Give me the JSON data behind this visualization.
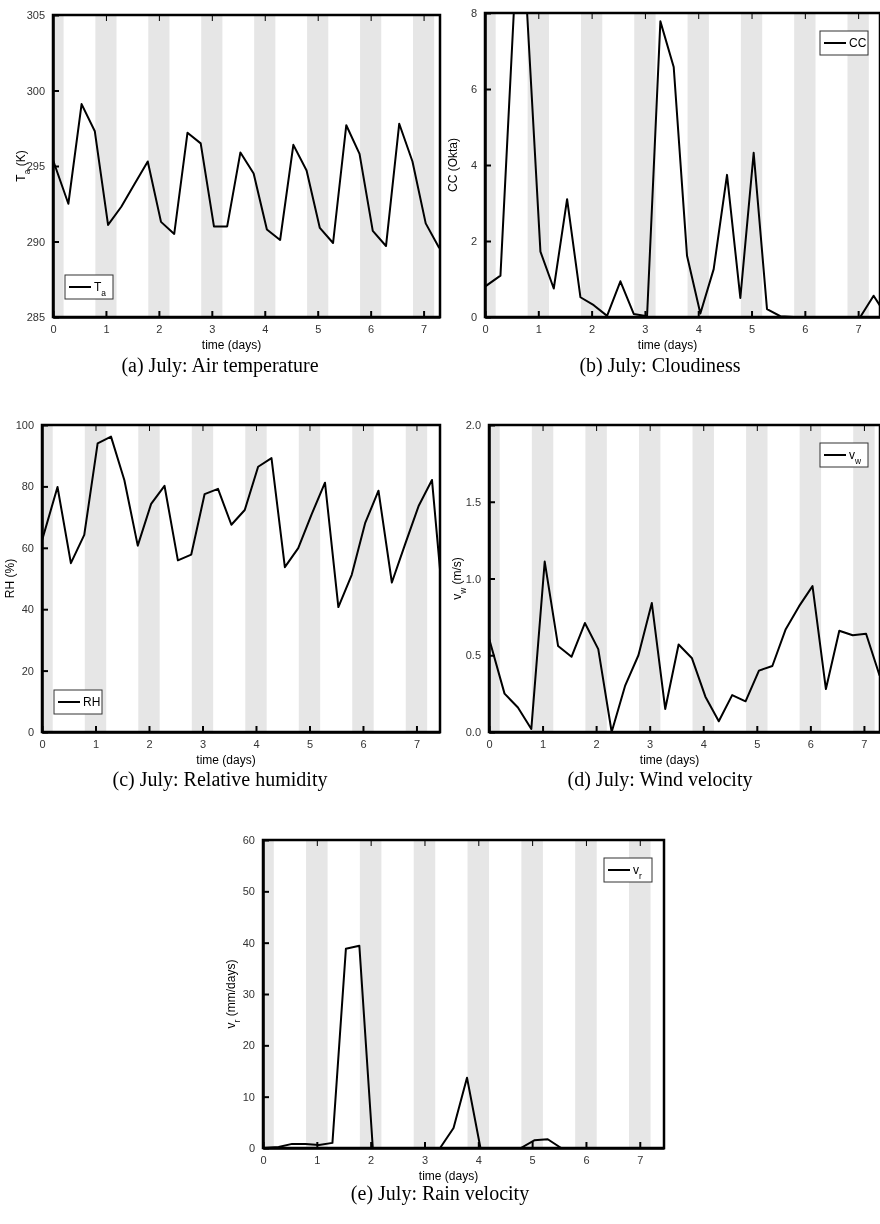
{
  "chart_data": [
    {
      "type": "line",
      "title": "(a) July: Air temperature",
      "xlabel": "time (days)",
      "ylabel": "T$_{a}$ (K)",
      "legend": "bottom left",
      "grid": false,
      "x": [
        0,
        0.29,
        0.54,
        0.79,
        1.04,
        1.29,
        1.54,
        1.79,
        2.04,
        2.29,
        2.54,
        2.79,
        3.04,
        3.29,
        3.54,
        3.79,
        4.04,
        4.29,
        4.54,
        4.79,
        5.04,
        5.29,
        5.54,
        5.79,
        6.04,
        6.29,
        6.54,
        6.79,
        7.04,
        7.29
      ],
      "series": [
        {
          "name": "T$_{a}$",
          "color": "#000000",
          "values": [
            295.4,
            292.5,
            299.1,
            297.3,
            291.1,
            292.3,
            293.8,
            295.3,
            291.3,
            290.5,
            297.2,
            296.5,
            291.0,
            291.0,
            295.9,
            294.5,
            290.8,
            290.1,
            296.4,
            294.7,
            290.9,
            289.9,
            297.7,
            295.8,
            290.7,
            289.7,
            297.8,
            295.3,
            291.2,
            289.6
          ]
        }
      ],
      "xlim": [
        0,
        7.31
      ],
      "xticks": [
        0,
        1,
        2,
        3,
        4,
        5,
        6,
        7
      ],
      "ylim": [
        285,
        305
      ],
      "yticks": [
        285,
        290,
        295,
        300,
        305
      ],
      "bands": [
        {
          "axis": "x",
          "from": 0,
          "to": 0.2,
          "color": "#e6e6e6"
        },
        {
          "axis": "x",
          "from": 0.8,
          "to": 1.2,
          "color": "#e6e6e6"
        },
        {
          "axis": "x",
          "from": 1.8,
          "to": 2.2,
          "color": "#e6e6e6"
        },
        {
          "axis": "x",
          "from": 2.8,
          "to": 3.2,
          "color": "#e6e6e6"
        },
        {
          "axis": "x",
          "from": 3.8,
          "to": 4.2,
          "color": "#e6e6e6"
        },
        {
          "axis": "x",
          "from": 4.8,
          "to": 5.2,
          "color": "#e6e6e6"
        },
        {
          "axis": "x",
          "from": 5.8,
          "to": 6.2,
          "color": "#e6e6e6"
        },
        {
          "axis": "x",
          "from": 6.8,
          "to": 7.2,
          "color": "#e6e6e6"
        }
      ]
    },
    {
      "type": "line",
      "title": "(b) July: Cloudiness",
      "xlabel": "time (days)",
      "ylabel": "CC (Okta)",
      "legend": "top right",
      "grid": false,
      "x": [
        0,
        0.29,
        0.54,
        0.79,
        1.04,
        1.29,
        1.54,
        1.79,
        2.04,
        2.29,
        2.54,
        2.79,
        3.04,
        3.29,
        3.54,
        3.79,
        4.04,
        4.29,
        4.54,
        4.79,
        5.04,
        5.29,
        5.54,
        5.79,
        6.04,
        6.29,
        6.54,
        6.79,
        7.04,
        7.29,
        7.41
      ],
      "series": [
        {
          "name": "CC",
          "color": "#000000",
          "values": [
            0.8,
            1.09,
            8,
            8,
            1.72,
            0.75,
            3.1,
            0.52,
            0.31,
            0.03,
            0.94,
            0.08,
            0.02,
            7.78,
            6.58,
            1.61,
            0.09,
            1.26,
            3.74,
            0.5,
            4.32,
            0.21,
            0.02,
            0,
            0,
            0,
            0,
            0,
            0,
            0.56,
            0.3
          ]
        }
      ],
      "xlim": [
        0,
        7.41
      ],
      "xticks": [
        0,
        1,
        2,
        3,
        4,
        5,
        6,
        7
      ],
      "ylim": [
        0,
        8
      ],
      "yticks": [
        0,
        2,
        4,
        6,
        8
      ],
      "bands": [
        {
          "axis": "x",
          "from": 0,
          "to": 0.2,
          "color": "#e6e6e6"
        },
        {
          "axis": "x",
          "from": 0.8,
          "to": 1.2,
          "color": "#e6e6e6"
        },
        {
          "axis": "x",
          "from": 1.8,
          "to": 2.2,
          "color": "#e6e6e6"
        },
        {
          "axis": "x",
          "from": 2.8,
          "to": 3.2,
          "color": "#e6e6e6"
        },
        {
          "axis": "x",
          "from": 3.8,
          "to": 4.2,
          "color": "#e6e6e6"
        },
        {
          "axis": "x",
          "from": 4.8,
          "to": 5.2,
          "color": "#e6e6e6"
        },
        {
          "axis": "x",
          "from": 5.8,
          "to": 6.2,
          "color": "#e6e6e6"
        },
        {
          "axis": "x",
          "from": 6.8,
          "to": 7.2,
          "color": "#e6e6e6"
        }
      ]
    },
    {
      "type": "line",
      "title": "(c) July: Relative humidity",
      "xlabel": "time (days)",
      "ylabel": "RH (%)",
      "legend": "bottom left",
      "grid": false,
      "x": [
        0,
        0.29,
        0.54,
        0.79,
        1.04,
        1.29,
        1.54,
        1.79,
        2.04,
        2.29,
        2.54,
        2.79,
        3.04,
        3.29,
        3.54,
        3.79,
        4.04,
        4.29,
        4.54,
        4.79,
        5.04,
        5.29,
        5.54,
        5.79,
        6.04,
        6.29,
        6.54,
        6.79,
        7.04,
        7.29,
        7.44
      ],
      "series": [
        {
          "name": "RH",
          "color": "#000000",
          "values": [
            62.4,
            79.8,
            55.0,
            64.2,
            94.0,
            96.2,
            82,
            60.7,
            74.3,
            80.2,
            55.9,
            57.8,
            77.5,
            79.2,
            67.5,
            72.3,
            86.4,
            89.2,
            53.7,
            59.9,
            70.9,
            81.2,
            40.7,
            51.2,
            68.0,
            78.6,
            48.7,
            61.3,
            73.6,
            82.1,
            53
          ]
        }
      ],
      "xlim": [
        0,
        7.44
      ],
      "xticks": [
        0,
        1,
        2,
        3,
        4,
        5,
        6,
        7
      ],
      "ylim": [
        0,
        100
      ],
      "yticks": [
        0,
        20,
        40,
        60,
        80,
        100
      ],
      "bands": [
        {
          "axis": "x",
          "from": 0,
          "to": 0.2,
          "color": "#e6e6e6"
        },
        {
          "axis": "x",
          "from": 0.8,
          "to": 1.2,
          "color": "#e6e6e6"
        },
        {
          "axis": "x",
          "from": 1.8,
          "to": 2.2,
          "color": "#e6e6e6"
        },
        {
          "axis": "x",
          "from": 2.8,
          "to": 3.2,
          "color": "#e6e6e6"
        },
        {
          "axis": "x",
          "from": 3.8,
          "to": 4.2,
          "color": "#e6e6e6"
        },
        {
          "axis": "x",
          "from": 4.8,
          "to": 5.2,
          "color": "#e6e6e6"
        },
        {
          "axis": "x",
          "from": 5.8,
          "to": 6.2,
          "color": "#e6e6e6"
        },
        {
          "axis": "x",
          "from": 6.8,
          "to": 7.2,
          "color": "#e6e6e6"
        }
      ]
    },
    {
      "type": "line",
      "title": "(d) July: Wind velocity",
      "xlabel": "time (days)",
      "ylabel": "v$_{w}$ (m/s)",
      "legend": "top right",
      "grid": false,
      "x": [
        0,
        0.29,
        0.54,
        0.79,
        1.04,
        1.29,
        1.54,
        1.79,
        2.04,
        2.29,
        2.54,
        2.79,
        3.04,
        3.29,
        3.54,
        3.79,
        4.04,
        4.29,
        4.54,
        4.79,
        5.04,
        5.29,
        5.54,
        5.79,
        6.04,
        6.29,
        6.54,
        6.79,
        7.04,
        7.29
      ],
      "series": [
        {
          "name": "v$_{w}$",
          "color": "#000000",
          "values": [
            0.61,
            0.25,
            0.16,
            0.02,
            1.11,
            0.56,
            0.49,
            0.71,
            0.54,
            0.0,
            0.3,
            0.5,
            0.84,
            0.15,
            0.57,
            0.48,
            0.23,
            0.07,
            0.24,
            0.2,
            0.4,
            0.43,
            0.67,
            0.82,
            0.95,
            0.28,
            0.66,
            0.63,
            0.64,
            0.37
          ]
        }
      ],
      "xlim": [
        0,
        7.3
      ],
      "xticks": [
        0,
        1,
        2,
        3,
        4,
        5,
        6,
        7
      ],
      "ylim": [
        0,
        2
      ],
      "yticks": [
        {
          "value": 0,
          "label": "0.0"
        },
        {
          "value": 0.5,
          "label": "0.5"
        },
        {
          "value": 1,
          "label": "1.0"
        },
        {
          "value": 1.5,
          "label": "1.5"
        },
        {
          "value": 2,
          "label": "2.0"
        }
      ],
      "bands": [
        {
          "axis": "x",
          "from": 0,
          "to": 0.2,
          "color": "#e6e6e6"
        },
        {
          "axis": "x",
          "from": 0.8,
          "to": 1.2,
          "color": "#e6e6e6"
        },
        {
          "axis": "x",
          "from": 1.8,
          "to": 2.2,
          "color": "#e6e6e6"
        },
        {
          "axis": "x",
          "from": 2.8,
          "to": 3.2,
          "color": "#e6e6e6"
        },
        {
          "axis": "x",
          "from": 3.8,
          "to": 4.2,
          "color": "#e6e6e6"
        },
        {
          "axis": "x",
          "from": 4.8,
          "to": 5.2,
          "color": "#e6e6e6"
        },
        {
          "axis": "x",
          "from": 5.8,
          "to": 6.2,
          "color": "#e6e6e6"
        },
        {
          "axis": "x",
          "from": 6.8,
          "to": 7.2,
          "color": "#e6e6e6"
        }
      ]
    },
    {
      "type": "line",
      "title": "(e) July: Rain velocity",
      "xlabel": "time (days)",
      "ylabel": "v$_{r}$ (mm/days)",
      "legend": "top right",
      "grid": false,
      "x": [
        0,
        0.29,
        0.54,
        0.79,
        1.04,
        1.29,
        1.54,
        1.79,
        2.04,
        2.29,
        2.54,
        2.79,
        3.04,
        3.29,
        3.54,
        3.79,
        4.04,
        4.29,
        4.54,
        4.79,
        5.04,
        5.29,
        5.54,
        5.79,
        6.04,
        6.29,
        6.54,
        6.79,
        7.04,
        7.29
      ],
      "series": [
        {
          "name": "v$_{r}$",
          "color": "#000000",
          "values": [
            0,
            0.2,
            0.8,
            0.8,
            0.6,
            1.0,
            38.8,
            39.4,
            0,
            0,
            0,
            0,
            0,
            0,
            3.9,
            13.7,
            0,
            0,
            0,
            0,
            1.5,
            1.7,
            0,
            0,
            0,
            0,
            0,
            0,
            0,
            0
          ]
        }
      ],
      "xlim": [
        0,
        7.45
      ],
      "xticks": [
        0,
        1,
        2,
        3,
        4,
        5,
        6,
        7
      ],
      "ylim": [
        0,
        60
      ],
      "yticks": [
        0,
        10,
        20,
        30,
        40,
        50,
        60
      ],
      "bands": [
        {
          "axis": "x",
          "from": 0,
          "to": 0.2,
          "color": "#e6e6e6"
        },
        {
          "axis": "x",
          "from": 0.8,
          "to": 1.2,
          "color": "#e6e6e6"
        },
        {
          "axis": "x",
          "from": 1.8,
          "to": 2.2,
          "color": "#e6e6e6"
        },
        {
          "axis": "x",
          "from": 2.8,
          "to": 3.2,
          "color": "#e6e6e6"
        },
        {
          "axis": "x",
          "from": 3.8,
          "to": 4.2,
          "color": "#e6e6e6"
        },
        {
          "axis": "x",
          "from": 4.8,
          "to": 5.2,
          "color": "#e6e6e6"
        },
        {
          "axis": "x",
          "from": 5.8,
          "to": 6.2,
          "color": "#e6e6e6"
        },
        {
          "axis": "x",
          "from": 6.8,
          "to": 7.2,
          "color": "#e6e6e6"
        }
      ]
    }
  ]
}
